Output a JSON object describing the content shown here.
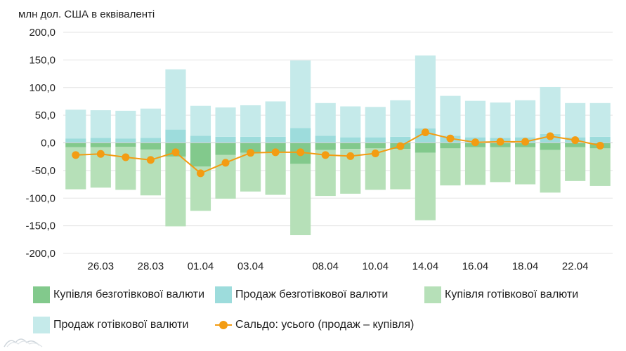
{
  "chart_data": {
    "type": "bar",
    "stacked": true,
    "unit_label": "млн дол. США в еквіваленті",
    "ylim": [
      -200,
      200
    ],
    "yticks": [
      "200,0",
      "150,0",
      "100,0",
      "50,0",
      "0,0",
      "-50,0",
      "-100,0",
      "-150,0",
      "-200,0"
    ],
    "ytick_values": [
      200,
      150,
      100,
      50,
      0,
      -50,
      -100,
      -150,
      -200
    ],
    "xtick_labels": [
      {
        "index": 1,
        "label": "26.03"
      },
      {
        "index": 3,
        "label": "28.03"
      },
      {
        "index": 5,
        "label": "01.04"
      },
      {
        "index": 7,
        "label": "03.04"
      },
      {
        "index": 10,
        "label": "08.04"
      },
      {
        "index": 12,
        "label": "10.04"
      },
      {
        "index": 14,
        "label": "14.04"
      },
      {
        "index": 16,
        "label": "16.04"
      },
      {
        "index": 18,
        "label": "18.04"
      },
      {
        "index": 20,
        "label": "22.04"
      }
    ],
    "n_categories": 22,
    "series": [
      {
        "name": "Купівля безготівкової валюти",
        "color": "#82c98c",
        "values": [
          -8,
          -8,
          -7,
          -12,
          -25,
          -43,
          -22,
          -18,
          -18,
          -38,
          -13,
          -11,
          -10,
          -11,
          -18,
          -10,
          -8,
          -8,
          -8,
          -13,
          -8,
          -10
        ]
      },
      {
        "name": "Продаж безготівкової валюти",
        "color": "#9ddcdc",
        "values": [
          8,
          9,
          8,
          9,
          24,
          13,
          11,
          11,
          11,
          27,
          13,
          10,
          10,
          11,
          26,
          13,
          10,
          9,
          10,
          16,
          10,
          11
        ]
      },
      {
        "name": "Купівля готівкової валюти",
        "color": "#b6e0b8",
        "values": [
          -76,
          -73,
          -78,
          -83,
          -126,
          -80,
          -79,
          -70,
          -76,
          -129,
          -83,
          -81,
          -75,
          -73,
          -122,
          -67,
          -68,
          -63,
          -67,
          -77,
          -61,
          -68
        ]
      },
      {
        "name": "Продаж готівкової валюти",
        "color": "#c5eaea",
        "values": [
          52,
          50,
          50,
          53,
          109,
          54,
          53,
          57,
          64,
          122,
          59,
          56,
          55,
          66,
          132,
          72,
          66,
          64,
          67,
          85,
          62,
          61
        ]
      }
    ],
    "line_series": {
      "name": "Сальдо: усього (продаж – купівля)",
      "color": "#f39c12",
      "values": [
        -22,
        -20,
        -26,
        -31,
        -17,
        -55,
        -36,
        -18,
        -17,
        -17,
        -22,
        -24,
        -19,
        -6,
        19,
        8,
        1,
        2,
        2,
        12,
        5,
        -5
      ]
    },
    "grid": true,
    "legend_position": "bottom"
  }
}
